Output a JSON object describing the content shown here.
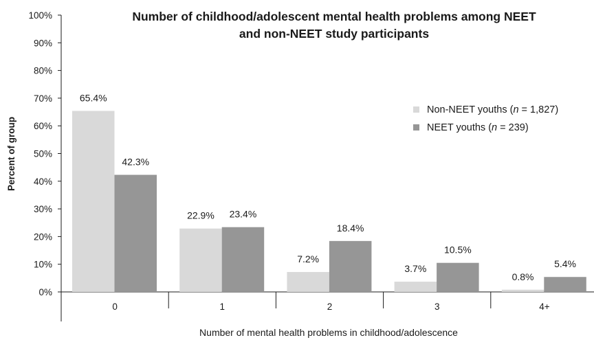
{
  "chart_data": {
    "type": "bar",
    "title": "Number of childhood/adolescent mental health problems among NEET and non-NEET study participants",
    "title_lines": [
      "Number of childhood/adolescent mental health problems among NEET",
      "and non-NEET study participants"
    ],
    "xlabel": "Number of mental health problems in childhood/adolescence",
    "ylabel": "Percent of group",
    "ylim": [
      0,
      100
    ],
    "y_ticks": [
      "0%",
      "10%",
      "20%",
      "30%",
      "40%",
      "50%",
      "60%",
      "70%",
      "80%",
      "90%",
      "100%"
    ],
    "categories": [
      "0",
      "1",
      "2",
      "3",
      "4+"
    ],
    "series": [
      {
        "name": "Non-NEET youths (n = 1,827)",
        "legend_parts": {
          "before": "Non-NEET youths (",
          "italic": "n",
          "after": " = 1,827)"
        },
        "color": "#d9d9d9",
        "values": [
          65.4,
          22.9,
          7.2,
          3.7,
          0.8
        ],
        "labels": [
          "65.4%",
          "22.9%",
          "7.2%",
          "3.7%",
          "0.8%"
        ]
      },
      {
        "name": "NEET youths (n = 239)",
        "legend_parts": {
          "before": "NEET youths (",
          "italic": "n",
          "after": " = 239)"
        },
        "color": "#969696",
        "values": [
          42.3,
          23.4,
          18.4,
          10.5,
          5.4
        ],
        "labels": [
          "42.3%",
          "23.4%",
          "18.4%",
          "10.5%",
          "5.4%"
        ]
      }
    ],
    "legend_position": "top-right",
    "grid": false
  }
}
